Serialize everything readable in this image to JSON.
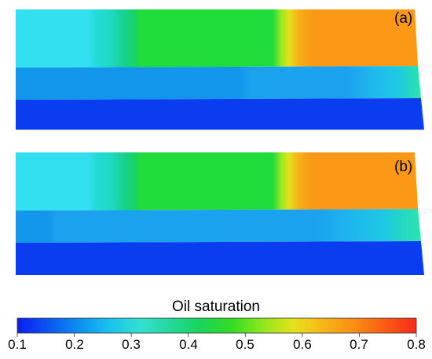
{
  "panels": [
    {
      "label": "(a)",
      "layers": [
        {
          "name": "top-layer",
          "stops": [
            [
              0.0,
              "#33e0f0"
            ],
            [
              0.18,
              "#33e0f0"
            ],
            [
              0.2,
              "#22dcd8"
            ],
            [
              0.24,
              "#1fd8c0"
            ],
            [
              0.26,
              "#19d49c"
            ],
            [
              0.28,
              "#16d27c"
            ],
            [
              0.3,
              "#18d45a"
            ],
            [
              0.31,
              "#20dc3a"
            ],
            [
              0.64,
              "#20dc3a"
            ],
            [
              0.66,
              "#9ae81e"
            ],
            [
              0.68,
              "#e6e01a"
            ],
            [
              0.7,
              "#f6b418"
            ],
            [
              0.72,
              "#f9a218"
            ],
            [
              0.74,
              "#fb9916"
            ],
            [
              1.0,
              "#fb9916"
            ]
          ]
        },
        {
          "name": "middle-layer",
          "stops": [
            [
              0.0,
              "#1196ec"
            ],
            [
              0.55,
              "#1196ec"
            ],
            [
              0.58,
              "#1aa2ee"
            ],
            [
              0.82,
              "#1aa2ee"
            ],
            [
              0.86,
              "#1eb0ee"
            ],
            [
              0.9,
              "#1ebeec"
            ],
            [
              0.94,
              "#1ec8e2"
            ],
            [
              0.97,
              "#22d6c6"
            ],
            [
              1.0,
              "#30e4a8"
            ]
          ]
        },
        {
          "name": "bottom-layer",
          "stops": [
            [
              0.0,
              "#0a3cf0"
            ],
            [
              1.0,
              "#0a3cf0"
            ]
          ]
        }
      ]
    },
    {
      "label": "(b)",
      "layers": [
        {
          "name": "top-layer",
          "stops": [
            [
              0.0,
              "#33e0f0"
            ],
            [
              0.18,
              "#33e0f0"
            ],
            [
              0.2,
              "#22dcd8"
            ],
            [
              0.24,
              "#1fd8c0"
            ],
            [
              0.26,
              "#19d49c"
            ],
            [
              0.28,
              "#16d27c"
            ],
            [
              0.3,
              "#18d45a"
            ],
            [
              0.31,
              "#20dc3a"
            ],
            [
              0.64,
              "#20dc3a"
            ],
            [
              0.66,
              "#9ae81e"
            ],
            [
              0.68,
              "#e6e01a"
            ],
            [
              0.7,
              "#f6b418"
            ],
            [
              0.72,
              "#f9a218"
            ],
            [
              0.74,
              "#fb9916"
            ],
            [
              1.0,
              "#fb9916"
            ]
          ]
        },
        {
          "name": "middle-layer",
          "stops": [
            [
              0.0,
              "#1196ec"
            ],
            [
              0.08,
              "#1196ec"
            ],
            [
              0.1,
              "#1aa2ee"
            ],
            [
              0.74,
              "#1aa2ee"
            ],
            [
              0.8,
              "#1eb0ee"
            ],
            [
              0.86,
              "#1ebeec"
            ],
            [
              0.91,
              "#1ec8e2"
            ],
            [
              0.95,
              "#22d6c6"
            ],
            [
              1.0,
              "#30e4a8"
            ]
          ]
        },
        {
          "name": "bottom-layer",
          "stops": [
            [
              0.0,
              "#0a3cf0"
            ],
            [
              1.0,
              "#0a3cf0"
            ]
          ]
        }
      ]
    }
  ],
  "colorbar": {
    "title": "Oil saturation",
    "min": 0.1,
    "max": 0.8,
    "ticks": [
      "0.1",
      "0.2",
      "0.3",
      "0.4",
      "0.5",
      "0.6",
      "0.7",
      "0.8"
    ],
    "colors": [
      "#0a1ef5",
      "#0a55ef",
      "#0b8ff0",
      "#19c2ee",
      "#33e0d0",
      "#22d99a",
      "#19d456",
      "#35dc22",
      "#8ee81c",
      "#e6e21c",
      "#f8b418",
      "#fb8c14",
      "#fb5a14",
      "#f72a1a"
    ]
  }
}
